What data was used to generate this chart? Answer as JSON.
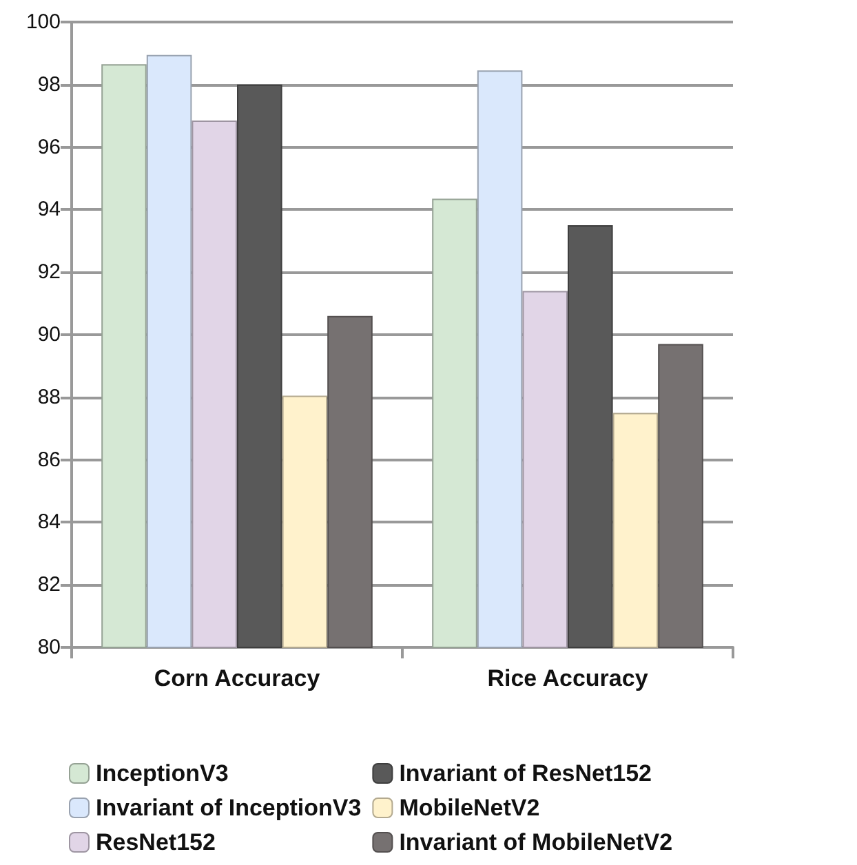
{
  "chart_data": {
    "type": "bar",
    "categories": [
      "Corn Accuracy",
      "Rice Accuracy"
    ],
    "series": [
      {
        "name": "InceptionV3",
        "color": "#d5e8d4",
        "values": [
          98.65,
          94.35
        ]
      },
      {
        "name": "Invariant of InceptionV3",
        "color": "#dae8fc",
        "values": [
          98.95,
          98.45
        ]
      },
      {
        "name": "ResNet152",
        "color": "#e1d5e7",
        "values": [
          96.85,
          91.4
        ]
      },
      {
        "name": "Invariant of ResNet152",
        "color": "#595959",
        "values": [
          98.0,
          93.5
        ]
      },
      {
        "name": "MobileNetV2",
        "color": "#fff2cc",
        "values": [
          88.05,
          87.5
        ]
      },
      {
        "name": "Invariant of MobileNetV2",
        "color": "#767171",
        "values": [
          90.6,
          89.7
        ]
      }
    ],
    "ylim": [
      80,
      100
    ],
    "yticks": [
      80,
      82,
      84,
      86,
      88,
      90,
      92,
      94,
      96,
      98,
      100
    ],
    "grid": "y",
    "legend": "bottom"
  }
}
